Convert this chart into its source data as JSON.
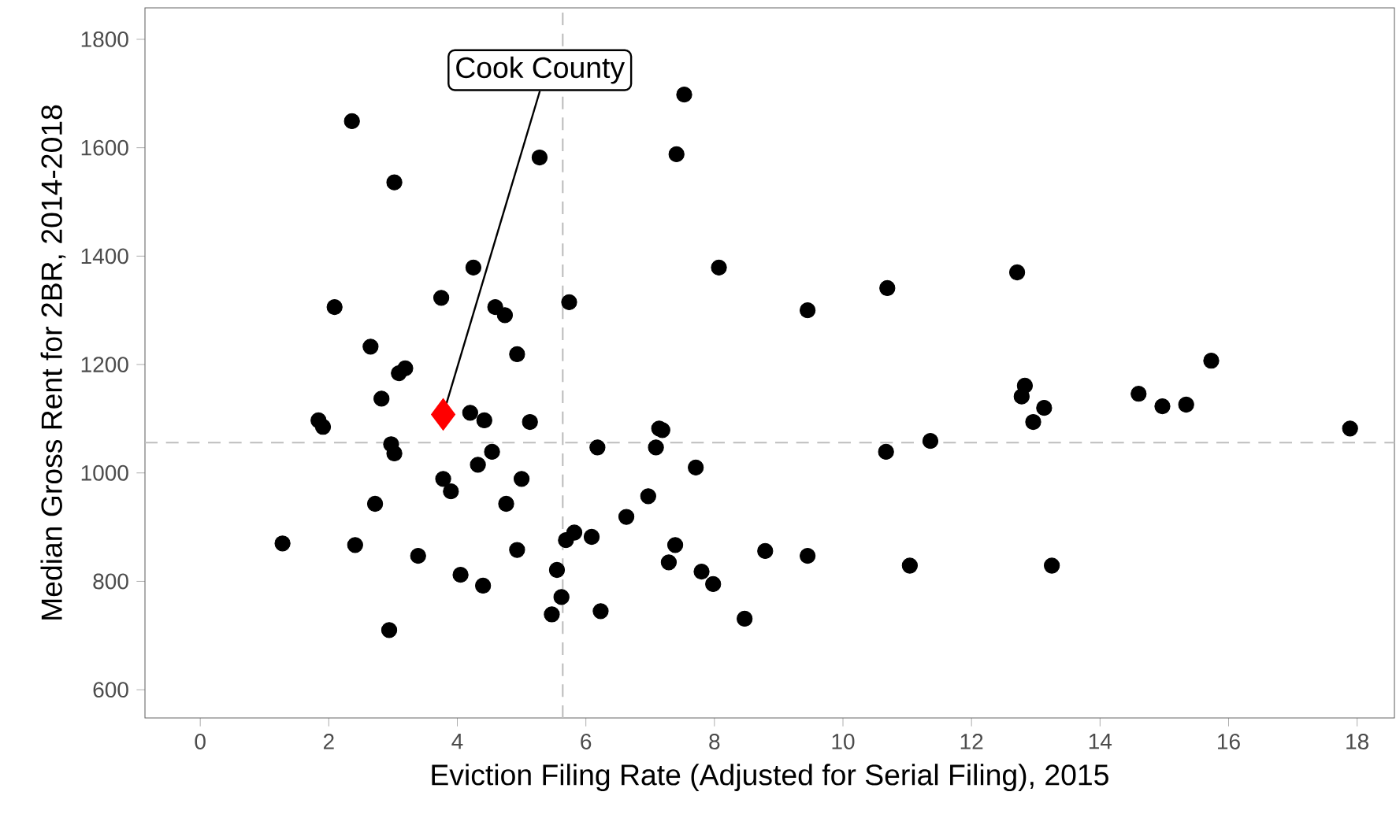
{
  "chart_data": {
    "type": "scatter",
    "xlabel": "Eviction Filing Rate (Adjusted for Serial Filing), 2015",
    "ylabel": "Median Gross Rent for 2BR, 2014-2018",
    "xlim": [
      -0.86,
      18.58
    ],
    "ylim": [
      548,
      1858
    ],
    "xticks": [
      0,
      2,
      4,
      6,
      8,
      10,
      12,
      14,
      16,
      18
    ],
    "yticks": [
      600,
      800,
      1000,
      1200,
      1400,
      1600,
      1800
    ],
    "grid": false,
    "marker": "circle",
    "series": [
      {
        "color": "#000000",
        "x": [
          1.28,
          1.84,
          1.91,
          2.09,
          2.36,
          2.41,
          2.65,
          2.72,
          2.82,
          2.94,
          2.97,
          3.02,
          3.02,
          3.09,
          3.19,
          3.39,
          3.75,
          3.78,
          3.9,
          4.05,
          4.25,
          4.2,
          4.42,
          4.32,
          4.4,
          4.54,
          4.59,
          4.74,
          4.76,
          4.93,
          4.93,
          5.0,
          5.13,
          5.28,
          5.47,
          5.55,
          5.62,
          5.69,
          5.74,
          5.82,
          6.09,
          6.18,
          6.23,
          6.63,
          6.97,
          7.09,
          7.14,
          7.19,
          7.29,
          7.39,
          7.53,
          7.41,
          7.71,
          7.8,
          7.98,
          8.07,
          8.47,
          8.79,
          9.45,
          9.45,
          10.67,
          10.69,
          11.04,
          11.36,
          12.71,
          12.78,
          12.83,
          12.96,
          13.13,
          13.25,
          14.6,
          14.97,
          15.34,
          15.73,
          17.89
        ],
        "values": [
          870,
          1097,
          1085,
          1306,
          1649,
          867,
          1233,
          943,
          1137,
          710,
          1053,
          1036,
          1536,
          1184,
          1193,
          847,
          1323,
          989,
          966,
          812,
          1379,
          1111,
          1097,
          1015,
          792,
          1039,
          1306,
          1291,
          943,
          1219,
          858,
          989,
          1094,
          1582,
          739,
          821,
          771,
          876,
          1315,
          890,
          882,
          1047,
          745,
          919,
          957,
          1047,
          1082,
          1079,
          835,
          867,
          1698,
          1588,
          1010,
          818,
          795,
          1379,
          731,
          856,
          1300,
          847,
          1039,
          1341,
          829,
          1059,
          1370,
          1141,
          1161,
          1094,
          1120,
          829,
          1146,
          1123,
          1126,
          1207,
          1082
        ]
      },
      {
        "color": "#ff0000",
        "marker": "diamond",
        "x": [
          3.78
        ],
        "values": [
          1108
        ]
      }
    ],
    "ref_lines": [
      {
        "axis": "x",
        "value": 5.64,
        "color": "#bebebe",
        "line_style": "dashed"
      },
      {
        "axis": "y",
        "value": 1056,
        "color": "#bebebe",
        "line_style": "dashed"
      }
    ],
    "annotations": [
      {
        "text": "Cook County",
        "x": 3.78,
        "y": 1108
      }
    ]
  }
}
